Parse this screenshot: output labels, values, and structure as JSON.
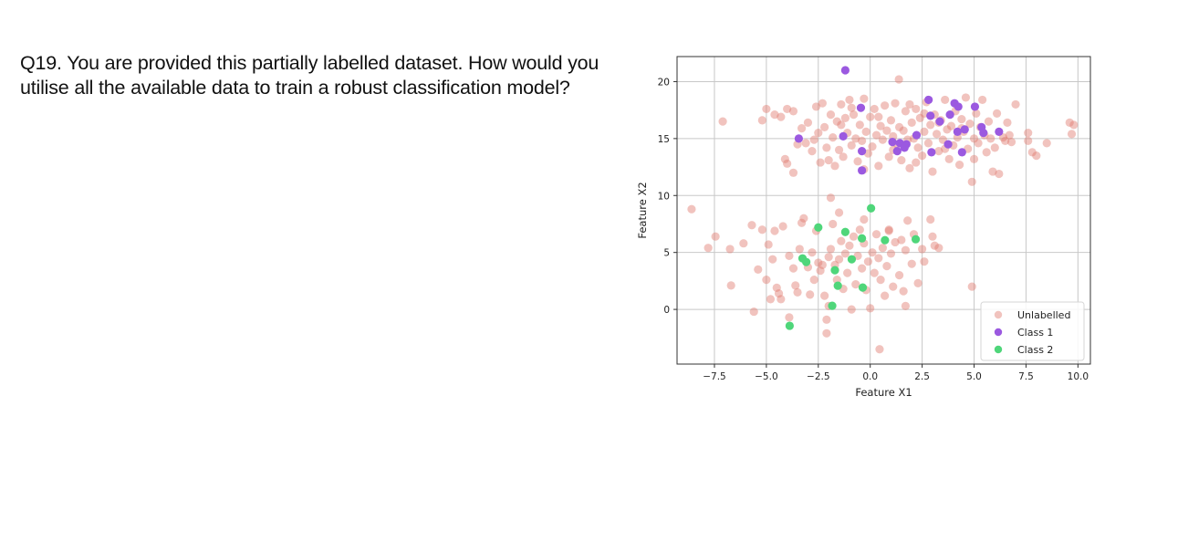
{
  "question": {
    "number": "Q19.",
    "text": "Q19. You are provided this partially labelled dataset. How would you utilise all the available data to train a robust classification model?"
  },
  "chart_data": {
    "type": "scatter",
    "title": "",
    "xlabel": "Feature X1",
    "ylabel": "Feature X2",
    "xlim": [
      -9.3,
      10.6
    ],
    "ylim": [
      -4.8,
      22.2
    ],
    "xticks": [
      -7.5,
      -5.0,
      -2.5,
      0.0,
      2.5,
      5.0,
      7.5,
      10.0
    ],
    "xtick_labels": [
      "−7.5",
      "−5.0",
      "−2.5",
      "0.0",
      "2.5",
      "5.0",
      "7.5",
      "10.0"
    ],
    "yticks": [
      0,
      5,
      10,
      15,
      20
    ],
    "ytick_labels": [
      "0",
      "5",
      "10",
      "15",
      "20"
    ],
    "grid": true,
    "legend_position": "lower right",
    "series": [
      {
        "name": "Unlabelled",
        "color": "#e07a6e",
        "alpha": 0.45,
        "points": [
          [
            -8.6,
            8.8
          ],
          [
            -7.1,
            16.5
          ],
          [
            -7.8,
            5.4
          ],
          [
            -7.45,
            6.4
          ],
          [
            -6.75,
            5.3
          ],
          [
            -6.7,
            2.1
          ],
          [
            -5.6,
            -0.2
          ],
          [
            -6.1,
            5.8
          ],
          [
            -5.7,
            7.4
          ],
          [
            -5.2,
            7.0
          ],
          [
            -5.4,
            3.5
          ],
          [
            -5.0,
            2.6
          ],
          [
            -4.9,
            5.7
          ],
          [
            -4.7,
            4.4
          ],
          [
            -4.5,
            1.9
          ],
          [
            -4.8,
            0.9
          ],
          [
            -4.4,
            1.4
          ],
          [
            -4.3,
            0.9
          ],
          [
            -4.6,
            6.9
          ],
          [
            -4.2,
            7.3
          ],
          [
            -3.9,
            -0.7
          ],
          [
            -3.9,
            4.7
          ],
          [
            -3.6,
            2.1
          ],
          [
            -3.5,
            1.5
          ],
          [
            -3.4,
            5.3
          ],
          [
            -3.3,
            7.6
          ],
          [
            -3.2,
            8.0
          ],
          [
            -3.0,
            3.7
          ],
          [
            -2.9,
            1.3
          ],
          [
            -2.8,
            5.0
          ],
          [
            -2.7,
            2.6
          ],
          [
            -2.6,
            6.9
          ],
          [
            -2.5,
            4.1
          ],
          [
            -2.4,
            3.4
          ],
          [
            -2.3,
            3.9
          ],
          [
            -2.2,
            1.2
          ],
          [
            -2.1,
            -2.1
          ],
          [
            -2.0,
            0.3
          ],
          [
            -2.0,
            4.6
          ],
          [
            -1.9,
            5.3
          ],
          [
            -1.8,
            7.5
          ],
          [
            -1.7,
            3.9
          ],
          [
            -1.6,
            2.6
          ],
          [
            -1.5,
            4.4
          ],
          [
            -1.4,
            6.0
          ],
          [
            -1.3,
            1.8
          ],
          [
            -1.2,
            4.9
          ],
          [
            -1.1,
            3.2
          ],
          [
            -1.0,
            5.6
          ],
          [
            -0.9,
            0.0
          ],
          [
            -0.8,
            6.4
          ],
          [
            -0.7,
            2.2
          ],
          [
            -0.6,
            4.7
          ],
          [
            -0.5,
            7.0
          ],
          [
            -0.4,
            3.6
          ],
          [
            -0.3,
            5.8
          ],
          [
            -0.2,
            1.7
          ],
          [
            -0.1,
            4.2
          ],
          [
            0.0,
            0.1
          ],
          [
            0.1,
            5.0
          ],
          [
            0.2,
            3.2
          ],
          [
            0.3,
            6.6
          ],
          [
            0.4,
            4.5
          ],
          [
            0.5,
            2.6
          ],
          [
            0.6,
            5.4
          ],
          [
            0.7,
            1.2
          ],
          [
            0.8,
            3.8
          ],
          [
            0.9,
            6.9
          ],
          [
            1.0,
            4.9
          ],
          [
            1.1,
            2.0
          ],
          [
            1.2,
            5.9
          ],
          [
            1.4,
            3.0
          ],
          [
            1.5,
            6.1
          ],
          [
            1.6,
            1.6
          ],
          [
            1.7,
            5.2
          ],
          [
            1.8,
            7.8
          ],
          [
            2.0,
            4.0
          ],
          [
            2.1,
            6.6
          ],
          [
            2.3,
            2.3
          ],
          [
            2.5,
            5.3
          ],
          [
            2.6,
            4.2
          ],
          [
            2.9,
            7.9
          ],
          [
            3.0,
            6.4
          ],
          [
            3.1,
            5.6
          ],
          [
            3.3,
            5.4
          ],
          [
            -1.9,
            9.8
          ],
          [
            -1.5,
            8.5
          ],
          [
            -0.3,
            7.9
          ],
          [
            0.9,
            7.0
          ],
          [
            1.7,
            0.3
          ],
          [
            0.45,
            -3.5
          ],
          [
            -2.1,
            -0.9
          ],
          [
            -3.7,
            3.6
          ],
          [
            4.9,
            2.0
          ],
          [
            -5.0,
            17.6
          ],
          [
            -4.6,
            17.1
          ],
          [
            -4.3,
            16.9
          ],
          [
            -5.2,
            16.6
          ],
          [
            -4.0,
            17.6
          ],
          [
            -3.7,
            17.4
          ],
          [
            -3.5,
            14.5
          ],
          [
            -4.1,
            13.2
          ],
          [
            -4.0,
            12.8
          ],
          [
            -3.7,
            12.0
          ],
          [
            -3.3,
            15.9
          ],
          [
            -3.1,
            14.6
          ],
          [
            -3.0,
            16.4
          ],
          [
            -2.8,
            13.9
          ],
          [
            -2.6,
            17.8
          ],
          [
            -2.5,
            15.5
          ],
          [
            -2.4,
            12.9
          ],
          [
            -2.3,
            18.1
          ],
          [
            -2.2,
            16.0
          ],
          [
            -2.1,
            14.2
          ],
          [
            -2.0,
            13.1
          ],
          [
            -1.9,
            17.1
          ],
          [
            -1.8,
            15.1
          ],
          [
            -1.7,
            12.6
          ],
          [
            -1.6,
            16.5
          ],
          [
            -1.5,
            14.0
          ],
          [
            -1.4,
            18.0
          ],
          [
            -1.3,
            13.4
          ],
          [
            -1.2,
            16.8
          ],
          [
            -1.1,
            15.5
          ],
          [
            -1.0,
            18.4
          ],
          [
            -0.9,
            14.4
          ],
          [
            -0.8,
            17.1
          ],
          [
            -0.7,
            15.0
          ],
          [
            -0.6,
            13.0
          ],
          [
            -0.5,
            16.2
          ],
          [
            -0.4,
            14.8
          ],
          [
            -0.3,
            18.5
          ],
          [
            -0.2,
            15.6
          ],
          [
            -0.1,
            13.7
          ],
          [
            0.0,
            16.9
          ],
          [
            0.1,
            14.3
          ],
          [
            0.2,
            17.6
          ],
          [
            0.3,
            15.3
          ],
          [
            0.4,
            12.6
          ],
          [
            0.5,
            16.1
          ],
          [
            0.6,
            14.9
          ],
          [
            0.7,
            17.9
          ],
          [
            0.8,
            15.7
          ],
          [
            0.9,
            13.4
          ],
          [
            1.0,
            16.6
          ],
          [
            1.1,
            15.2
          ],
          [
            1.2,
            18.1
          ],
          [
            1.3,
            14.5
          ],
          [
            1.38,
            20.2
          ],
          [
            1.4,
            16.0
          ],
          [
            1.5,
            13.1
          ],
          [
            1.6,
            15.7
          ],
          [
            1.7,
            17.4
          ],
          [
            1.8,
            14.9
          ],
          [
            1.9,
            12.4
          ],
          [
            2.0,
            16.4
          ],
          [
            2.1,
            15.0
          ],
          [
            2.2,
            17.6
          ],
          [
            2.3,
            14.2
          ],
          [
            2.4,
            16.8
          ],
          [
            2.5,
            13.5
          ],
          [
            2.6,
            15.6
          ],
          [
            2.7,
            18.2
          ],
          [
            2.8,
            14.6
          ],
          [
            2.9,
            16.2
          ],
          [
            3.0,
            12.1
          ],
          [
            3.1,
            17.1
          ],
          [
            3.2,
            15.4
          ],
          [
            3.3,
            13.9
          ],
          [
            3.4,
            16.6
          ],
          [
            3.5,
            14.9
          ],
          [
            3.6,
            18.4
          ],
          [
            3.7,
            15.8
          ],
          [
            3.8,
            13.2
          ],
          [
            3.9,
            16.1
          ],
          [
            4.0,
            14.4
          ],
          [
            4.1,
            17.4
          ],
          [
            4.2,
            15.1
          ],
          [
            4.3,
            12.7
          ],
          [
            4.4,
            16.7
          ],
          [
            4.5,
            15.6
          ],
          [
            4.6,
            18.6
          ],
          [
            4.7,
            14.1
          ],
          [
            4.8,
            16.3
          ],
          [
            4.9,
            11.2
          ],
          [
            5.0,
            15.0
          ],
          [
            5.1,
            17.2
          ],
          [
            5.2,
            14.6
          ],
          [
            5.3,
            16.0
          ],
          [
            5.4,
            18.4
          ],
          [
            5.5,
            15.3
          ],
          [
            5.6,
            13.8
          ],
          [
            5.7,
            16.5
          ],
          [
            5.8,
            15.0
          ],
          [
            5.9,
            12.1
          ],
          [
            6.0,
            14.2
          ],
          [
            6.1,
            17.2
          ],
          [
            6.2,
            11.9
          ],
          [
            6.4,
            15.1
          ],
          [
            6.5,
            14.8
          ],
          [
            6.6,
            16.4
          ],
          [
            6.7,
            15.3
          ],
          [
            6.8,
            14.7
          ],
          [
            7.0,
            18.0
          ],
          [
            7.6,
            14.8
          ],
          [
            7.6,
            15.5
          ],
          [
            7.8,
            13.8
          ],
          [
            8.0,
            13.5
          ],
          [
            8.5,
            14.6
          ],
          [
            9.6,
            16.4
          ],
          [
            9.8,
            16.2
          ],
          [
            9.7,
            15.4
          ],
          [
            -0.9,
            17.7
          ],
          [
            1.9,
            18.0
          ],
          [
            3.3,
            16.4
          ],
          [
            -2.7,
            14.9
          ],
          [
            0.4,
            16.9
          ],
          [
            2.6,
            17.2
          ],
          [
            4.4,
            15.9
          ],
          [
            -1.4,
            16.2
          ],
          [
            1.1,
            14.0
          ],
          [
            3.6,
            14.1
          ],
          [
            -0.3,
            12.3
          ],
          [
            2.2,
            12.9
          ],
          [
            5.0,
            13.2
          ]
        ]
      },
      {
        "name": "Class 1",
        "color": "#9b59e0",
        "alpha": 1.0,
        "points": [
          [
            -1.2,
            21.0
          ],
          [
            -0.45,
            17.7
          ],
          [
            -3.44,
            15.0
          ],
          [
            -1.3,
            15.2
          ],
          [
            -0.4,
            13.9
          ],
          [
            -0.4,
            12.2
          ],
          [
            1.07,
            14.7
          ],
          [
            1.43,
            14.6
          ],
          [
            1.74,
            14.5
          ],
          [
            1.3,
            13.9
          ],
          [
            1.65,
            14.2
          ],
          [
            2.23,
            15.3
          ],
          [
            2.81,
            18.4
          ],
          [
            2.9,
            17.0
          ],
          [
            3.35,
            16.5
          ],
          [
            2.95,
            13.8
          ],
          [
            3.75,
            14.5
          ],
          [
            3.84,
            17.1
          ],
          [
            4.06,
            18.1
          ],
          [
            4.24,
            17.8
          ],
          [
            4.2,
            15.6
          ],
          [
            4.55,
            15.8
          ],
          [
            4.42,
            13.8
          ],
          [
            5.04,
            17.8
          ],
          [
            5.36,
            16.0
          ],
          [
            5.45,
            15.5
          ],
          [
            6.2,
            15.6
          ]
        ]
      },
      {
        "name": "Class 2",
        "color": "#4fd67a",
        "alpha": 1.0,
        "points": [
          [
            0.04,
            8.88
          ],
          [
            -2.5,
            7.2
          ],
          [
            -1.2,
            6.8
          ],
          [
            -0.4,
            6.24
          ],
          [
            0.71,
            6.08
          ],
          [
            2.19,
            6.16
          ],
          [
            -3.26,
            4.48
          ],
          [
            -3.08,
            4.16
          ],
          [
            -0.89,
            4.4
          ],
          [
            -1.7,
            3.44
          ],
          [
            -1.56,
            2.08
          ],
          [
            -0.36,
            1.92
          ],
          [
            -1.83,
            0.32
          ],
          [
            -3.88,
            -1.44
          ]
        ]
      }
    ]
  }
}
